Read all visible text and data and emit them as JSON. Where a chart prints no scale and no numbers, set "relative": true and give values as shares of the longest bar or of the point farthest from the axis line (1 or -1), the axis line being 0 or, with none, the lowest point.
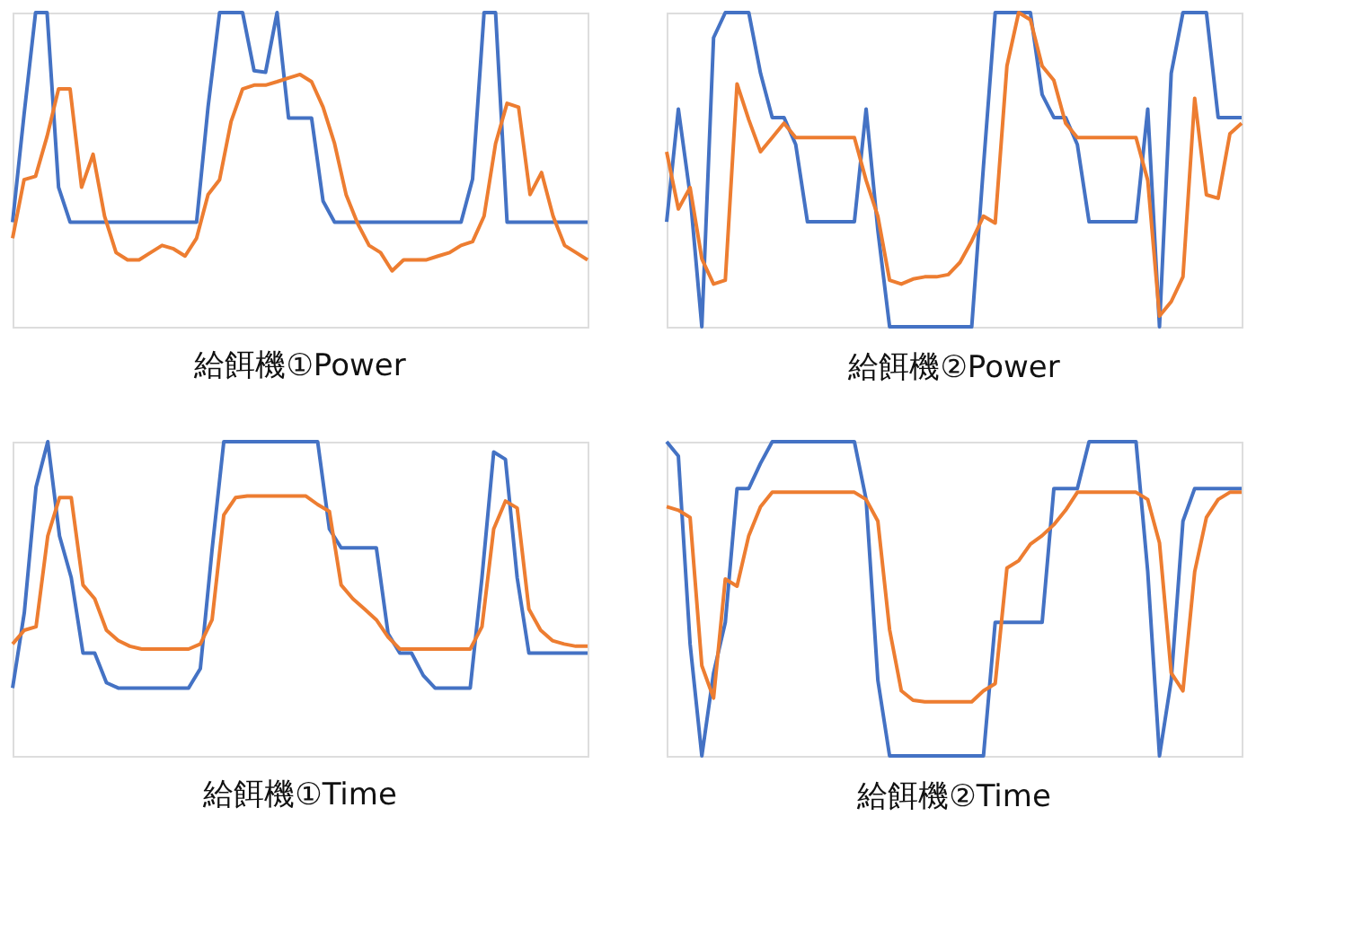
{
  "chart_data": [
    {
      "type": "line",
      "title": "給餌機①Power",
      "relative": true,
      "categories": [
        null,
        null,
        null,
        null,
        null,
        null,
        null,
        null,
        null,
        null,
        null,
        null,
        null,
        null,
        null,
        null,
        null,
        null,
        null,
        null,
        null,
        null,
        null,
        null,
        null,
        null,
        null,
        null,
        null,
        null,
        null,
        null,
        null,
        null,
        null,
        null,
        null,
        null,
        null,
        null,
        null,
        null,
        null,
        null,
        null,
        null,
        null,
        null,
        null,
        null,
        null
      ],
      "series": [
        {
          "color": "#4472c4",
          "values": [
            0.333,
            0.676,
            1,
            1,
            0.444,
            0.333,
            0.333,
            0.333,
            0.333,
            0.333,
            0.333,
            0.333,
            0.333,
            0.333,
            0.333,
            0.333,
            0.333,
            0.7,
            1,
            1,
            1,
            0.815,
            0.81,
            1,
            0.664,
            0.664,
            0.664,
            0.4,
            0.333,
            0.333,
            0.333,
            0.333,
            0.333,
            0.333,
            0.333,
            0.333,
            0.333,
            0.333,
            0.333,
            0.333,
            0.47,
            1,
            1,
            0.333,
            0.333,
            0.333,
            0.333,
            0.333,
            0.333,
            0.333,
            0.333
          ]
        },
        {
          "color": "#ed7d31",
          "values": [
            0.282,
            0.468,
            0.479,
            0.606,
            0.757,
            0.757,
            0.444,
            0.549,
            0.352,
            0.236,
            0.213,
            0.213,
            0.236,
            0.259,
            0.248,
            0.225,
            0.282,
            0.421,
            0.468,
            0.653,
            0.757,
            0.769,
            0.769,
            0.78,
            0.792,
            0.803,
            0.78,
            0.699,
            0.583,
            0.421,
            0.329,
            0.259,
            0.236,
            0.178,
            0.213,
            0.213,
            0.213,
            0.225,
            0.236,
            0.259,
            0.271,
            0.352,
            0.583,
            0.711,
            0.699,
            0.421,
            0.491,
            0.352,
            0.259,
            0.236,
            0.213
          ]
        }
      ]
    },
    {
      "type": "line",
      "title": "給餌機②Power",
      "relative": true,
      "categories": [
        null,
        null,
        null,
        null,
        null,
        null,
        null,
        null,
        null,
        null,
        null,
        null,
        null,
        null,
        null,
        null,
        null,
        null,
        null,
        null,
        null,
        null,
        null,
        null,
        null,
        null,
        null,
        null,
        null,
        null,
        null,
        null,
        null,
        null,
        null,
        null,
        null,
        null,
        null,
        null,
        null,
        null,
        null,
        null,
        null,
        null,
        null,
        null,
        null,
        null
      ],
      "series": [
        {
          "color": "#4472c4",
          "values": [
            0.334,
            0.693,
            0.42,
            0,
            0.92,
            1,
            1,
            1,
            0.807,
            0.666,
            0.666,
            0.58,
            0.334,
            0.334,
            0.334,
            0.334,
            0.334,
            0.693,
            0.307,
            0,
            0,
            0,
            0,
            0,
            0,
            0,
            0,
            0.511,
            1,
            1,
            1,
            1,
            0.739,
            0.666,
            0.666,
            0.58,
            0.334,
            0.334,
            0.334,
            0.334,
            0.334,
            0.693,
            0,
            0.807,
            1,
            1,
            1,
            0.666,
            0.666,
            0.666
          ]
        },
        {
          "color": "#ed7d31",
          "values": [
            0.557,
            0.375,
            0.443,
            0.216,
            0.136,
            0.148,
            0.773,
            0.659,
            0.557,
            0.602,
            0.648,
            0.602,
            0.602,
            0.602,
            0.602,
            0.602,
            0.602,
            0.466,
            0.352,
            0.148,
            0.136,
            0.152,
            0.159,
            0.159,
            0.166,
            0.205,
            0.273,
            0.352,
            0.33,
            0.83,
            1,
            0.977,
            0.83,
            0.784,
            0.648,
            0.602,
            0.602,
            0.602,
            0.602,
            0.602,
            0.602,
            0.466,
            0.034,
            0.08,
            0.159,
            0.727,
            0.42,
            0.409,
            0.614,
            0.648
          ]
        }
      ]
    },
    {
      "type": "line",
      "title": "給餌機①Time",
      "relative": true,
      "categories": [
        null,
        null,
        null,
        null,
        null,
        null,
        null,
        null,
        null,
        null,
        null,
        null,
        null,
        null,
        null,
        null,
        null,
        null,
        null,
        null,
        null,
        null,
        null,
        null,
        null,
        null,
        null,
        null,
        null,
        null,
        null,
        null,
        null,
        null,
        null,
        null,
        null,
        null,
        null,
        null,
        null,
        null,
        null,
        null,
        null,
        null,
        null,
        null,
        null,
        null
      ],
      "series": [
        {
          "color": "#4472c4",
          "values": [
            0.216,
            0.456,
            0.856,
            1,
            0.7,
            0.567,
            0.327,
            0.327,
            0.233,
            0.216,
            0.216,
            0.216,
            0.216,
            0.216,
            0.216,
            0.216,
            0.278,
            0.656,
            1,
            1,
            1,
            1,
            1,
            1,
            1,
            1,
            1,
            0.722,
            0.662,
            0.662,
            0.662,
            0.662,
            0.389,
            0.327,
            0.327,
            0.256,
            0.216,
            0.216,
            0.216,
            0.216,
            0.567,
            0.967,
            0.944,
            0.567,
            0.327,
            0.327,
            0.327,
            0.327,
            0.327,
            0.327
          ]
        },
        {
          "color": "#ed7d31",
          "values": [
            0.356,
            0.4,
            0.411,
            0.7,
            0.822,
            0.822,
            0.544,
            0.5,
            0.4,
            0.367,
            0.349,
            0.34,
            0.34,
            0.34,
            0.34,
            0.34,
            0.356,
            0.433,
            0.767,
            0.822,
            0.827,
            0.827,
            0.827,
            0.827,
            0.827,
            0.827,
            0.8,
            0.778,
            0.544,
            0.5,
            0.467,
            0.433,
            0.378,
            0.34,
            0.34,
            0.34,
            0.34,
            0.34,
            0.34,
            0.34,
            0.411,
            0.722,
            0.811,
            0.789,
            0.467,
            0.4,
            0.367,
            0.356,
            0.349,
            0.349
          ]
        }
      ]
    },
    {
      "type": "line",
      "title": "給餌機②Time",
      "relative": true,
      "categories": [
        null,
        null,
        null,
        null,
        null,
        null,
        null,
        null,
        null,
        null,
        null,
        null,
        null,
        null,
        null,
        null,
        null,
        null,
        null,
        null,
        null,
        null,
        null,
        null,
        null,
        null,
        null,
        null,
        null,
        null,
        null,
        null,
        null,
        null,
        null,
        null,
        null,
        null,
        null,
        null,
        null,
        null,
        null,
        null,
        null,
        null,
        null,
        null,
        null,
        null
      ],
      "series": [
        {
          "color": "#4472c4",
          "values": [
            1,
            0.954,
            0.356,
            0,
            0.264,
            0.425,
            0.851,
            0.851,
            0.931,
            1,
            1,
            1,
            1,
            1,
            1,
            1,
            1,
            0.816,
            0.241,
            0,
            0,
            0,
            0,
            0,
            0,
            0,
            0,
            0,
            0.425,
            0.425,
            0.425,
            0.425,
            0.425,
            0.851,
            0.851,
            0.851,
            1,
            1,
            1,
            1,
            1,
            0.586,
            0,
            0.241,
            0.747,
            0.851,
            0.851,
            0.851,
            0.851,
            0.851
          ]
        },
        {
          "color": "#ed7d31",
          "values": [
            0.793,
            0.782,
            0.759,
            0.287,
            0.184,
            0.563,
            0.54,
            0.701,
            0.793,
            0.839,
            0.839,
            0.839,
            0.839,
            0.839,
            0.839,
            0.839,
            0.839,
            0.816,
            0.747,
            0.402,
            0.207,
            0.177,
            0.172,
            0.172,
            0.172,
            0.172,
            0.172,
            0.207,
            0.23,
            0.598,
            0.621,
            0.674,
            0.701,
            0.736,
            0.782,
            0.839,
            0.839,
            0.839,
            0.839,
            0.839,
            0.839,
            0.816,
            0.678,
            0.264,
            0.207,
            0.586,
            0.759,
            0.816,
            0.839,
            0.839
          ]
        }
      ]
    }
  ]
}
